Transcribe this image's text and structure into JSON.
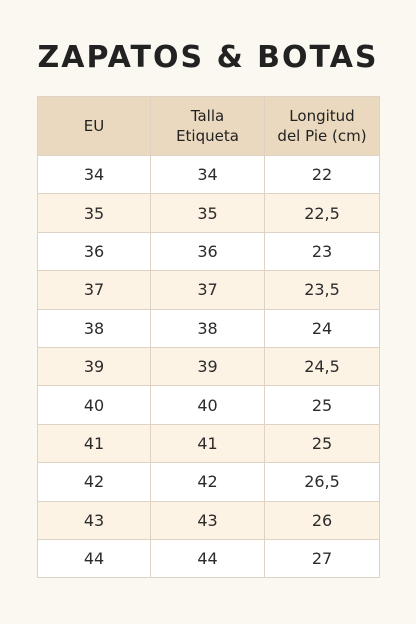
{
  "header": {
    "title": "ZAPATOS & BOTAS"
  },
  "table": {
    "columns": [
      [
        "EU"
      ],
      [
        "Talla",
        "Etiqueta"
      ],
      [
        "Longitud",
        "del Pie (cm)"
      ]
    ],
    "rows": [
      [
        "34",
        "34",
        "22"
      ],
      [
        "35",
        "35",
        "22,5"
      ],
      [
        "36",
        "36",
        "23"
      ],
      [
        "37",
        "37",
        "23,5"
      ],
      [
        "38",
        "38",
        "24"
      ],
      [
        "39",
        "39",
        "24,5"
      ],
      [
        "40",
        "40",
        "25"
      ],
      [
        "41",
        "41",
        "25"
      ],
      [
        "42",
        "42",
        "26,5"
      ],
      [
        "43",
        "43",
        "26"
      ],
      [
        "44",
        "44",
        "27"
      ]
    ]
  }
}
